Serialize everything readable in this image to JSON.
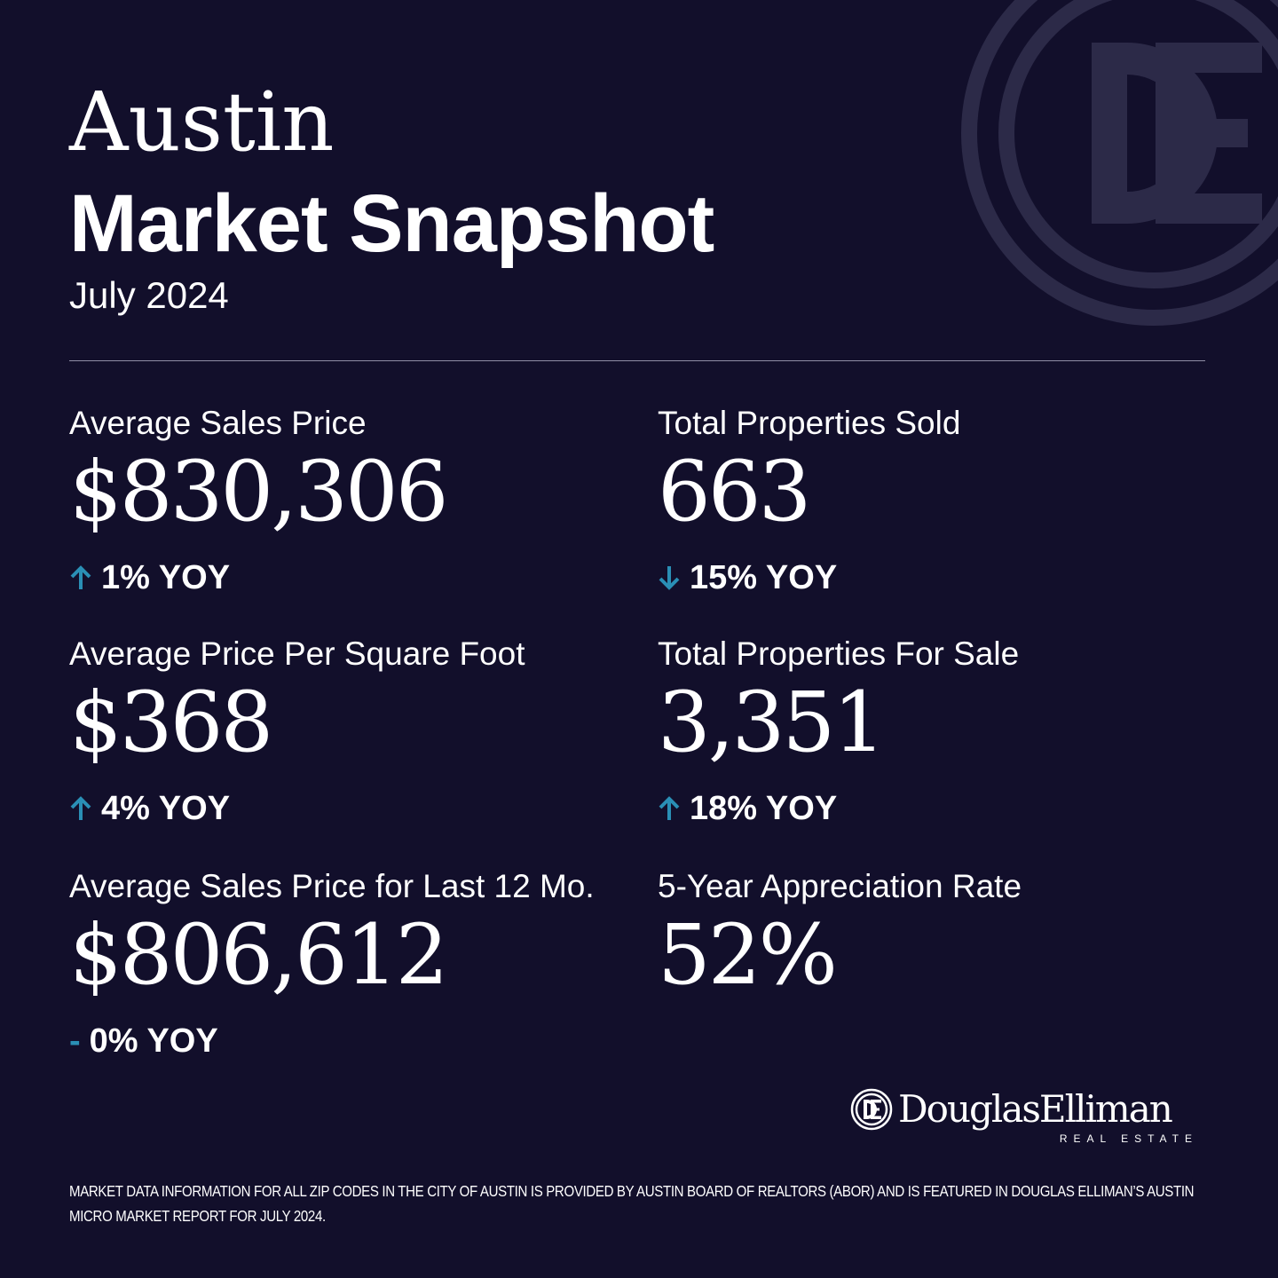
{
  "header": {
    "city": "Austin",
    "title": "Market Snapshot",
    "date": "July 2024"
  },
  "stats": [
    {
      "label": "Average Sales Price",
      "value": "$830,306",
      "change": "1% YOY",
      "direction": "up"
    },
    {
      "label": "Total Properties Sold",
      "value": "663",
      "change": "15% YOY",
      "direction": "down"
    },
    {
      "label": "Average Price Per Square Foot",
      "value": "$368",
      "change": "4% YOY",
      "direction": "up"
    },
    {
      "label": "Total Properties For Sale",
      "value": "3,351",
      "change": "18% YOY",
      "direction": "up"
    },
    {
      "label": "Average Sales Price for Last 12 Mo.",
      "value": "$806,612",
      "change": "0% YOY",
      "change_prefix": "-",
      "direction": "flat"
    },
    {
      "label": "5-Year Appreciation Rate",
      "value": "52%"
    }
  ],
  "brand": {
    "name": "DouglasElliman",
    "tagline": "REAL ESTATE"
  },
  "footnote": "MARKET DATA INFORMATION FOR ALL ZIP CODES IN THE CITY OF AUSTIN IS PROVIDED BY AUSTIN BOARD OF REALTORS (ABOR) AND IS FEATURED IN DOUGLAS ELLIMAN’S AUSTIN MICRO MARKET REPORT FOR JULY 2024.",
  "colors": {
    "background": "#120f2b",
    "accent": "#2a8fb5",
    "watermark": "#2c2a48",
    "text": "#ffffff"
  },
  "icons": {
    "up": "arrow-up-icon",
    "down": "arrow-down-icon",
    "watermark": "de-monogram-icon"
  }
}
